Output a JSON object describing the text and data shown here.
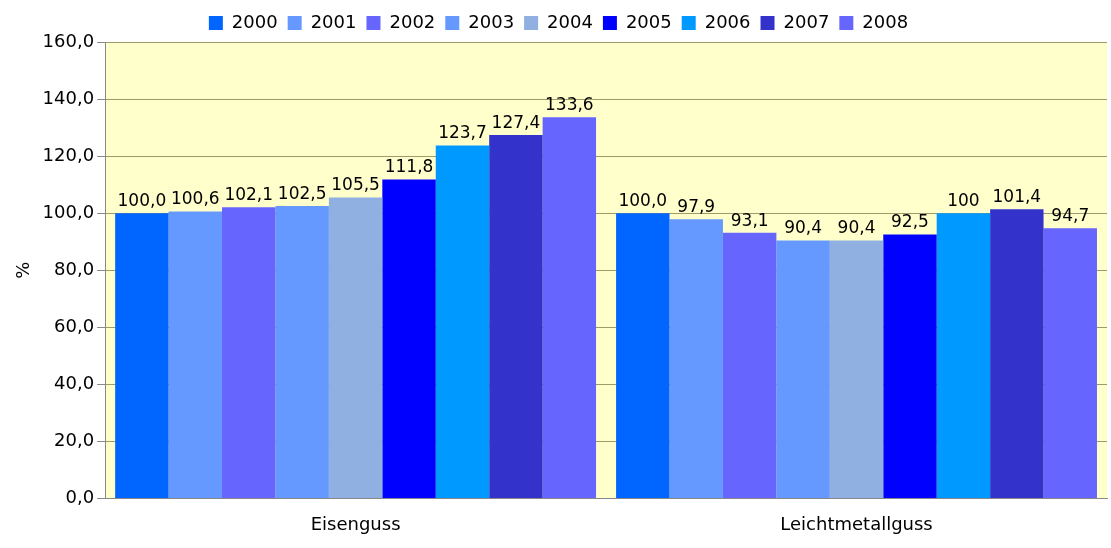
{
  "chart_data": {
    "type": "bar",
    "ylabel": "%",
    "categories": [
      "Eisenguss",
      "Leichtmetallguss"
    ],
    "series": [
      {
        "name": "2000",
        "color": "#0066ff",
        "values": [
          100.0,
          100.0
        ],
        "value_labels": [
          "100,0",
          "100,0"
        ]
      },
      {
        "name": "2001",
        "color": "#6699ff",
        "values": [
          100.6,
          97.9
        ],
        "value_labels": [
          "100,6",
          "97,9"
        ]
      },
      {
        "name": "2002",
        "color": "#6666ff",
        "values": [
          102.1,
          93.1
        ],
        "value_labels": [
          "102,1",
          "93,1"
        ]
      },
      {
        "name": "2003",
        "color": "#6699ff",
        "values": [
          102.5,
          90.4
        ],
        "value_labels": [
          "102,5",
          "90,4"
        ]
      },
      {
        "name": "2004",
        "color": "#8fb0e0",
        "values": [
          105.5,
          90.4
        ],
        "value_labels": [
          "105,5",
          "90,4"
        ]
      },
      {
        "name": "2005",
        "color": "#0000ff",
        "values": [
          111.8,
          92.5
        ],
        "value_labels": [
          "111,8",
          "92,5"
        ]
      },
      {
        "name": "2006",
        "color": "#0099ff",
        "values": [
          123.7,
          100
        ],
        "value_labels": [
          "123,7",
          "100"
        ]
      },
      {
        "name": "2007",
        "color": "#3333cc",
        "values": [
          127.4,
          101.4
        ],
        "value_labels": [
          "127,4",
          "101,4"
        ]
      },
      {
        "name": "2008",
        "color": "#6666ff",
        "values": [
          133.6,
          94.7
        ],
        "value_labels": [
          "133,6",
          "94,7"
        ]
      }
    ],
    "ylim": [
      0,
      160
    ],
    "yticks": [
      {
        "value": 0,
        "label": "0,0"
      },
      {
        "value": 20,
        "label": "20,0"
      },
      {
        "value": 40,
        "label": "40,0"
      },
      {
        "value": 60,
        "label": "60,0"
      },
      {
        "value": 80,
        "label": "80,0"
      },
      {
        "value": 100,
        "label": "100,0"
      },
      {
        "value": 120,
        "label": "120,0"
      },
      {
        "value": 140,
        "label": "140,0"
      },
      {
        "value": 160,
        "label": "160,0"
      }
    ],
    "grid": "y",
    "legend": "top"
  }
}
